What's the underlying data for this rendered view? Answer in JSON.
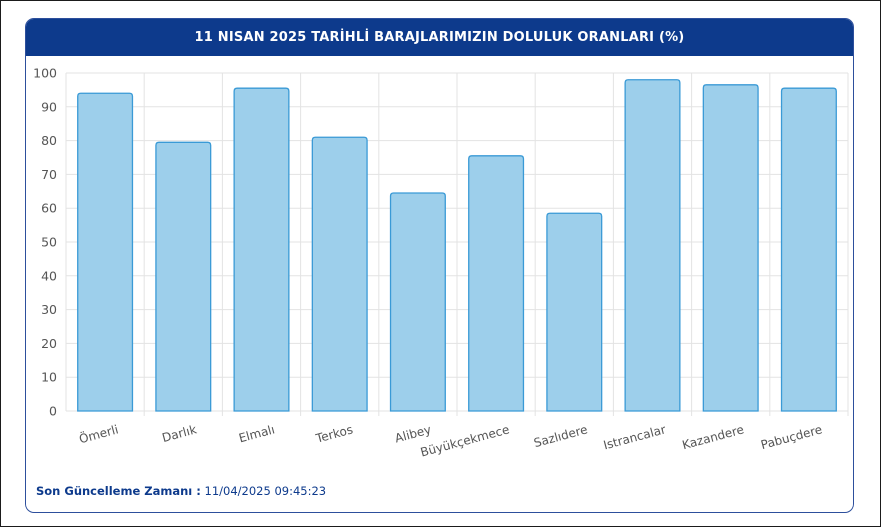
{
  "title": "11 NISAN 2025 TARİHLİ BARAJLARIMIZIN DOLULUK ORANLARI (%)",
  "footer": {
    "label": "Son Güncelleme Zamanı :",
    "value": "11/04/2025 09:45:23"
  },
  "colors": {
    "header_bg": "#0d3a8c",
    "bar_fill": "#9dcfeb",
    "bar_stroke": "#3a9ad6",
    "grid": "#e3e3e3"
  },
  "chart_data": {
    "type": "bar",
    "title": "11 NISAN 2025 TARİHLİ BARAJLARIMIZIN DOLULUK ORANLARI (%)",
    "xlabel": "",
    "ylabel": "",
    "categories": [
      "Ömerli",
      "Darlık",
      "Elmalı",
      "Terkos",
      "Alibey",
      "Büyükçekmece",
      "Sazlıdere",
      "Istrancalar",
      "Kazandere",
      "Pabuçdere"
    ],
    "values": [
      94,
      79.5,
      95.5,
      81,
      64.5,
      75.5,
      58.5,
      98,
      96.5,
      95.5
    ],
    "ylim": [
      0,
      100
    ],
    "yticks": [
      0,
      10,
      20,
      30,
      40,
      50,
      60,
      70,
      80,
      90,
      100
    ],
    "grid": true,
    "legend": "none"
  }
}
